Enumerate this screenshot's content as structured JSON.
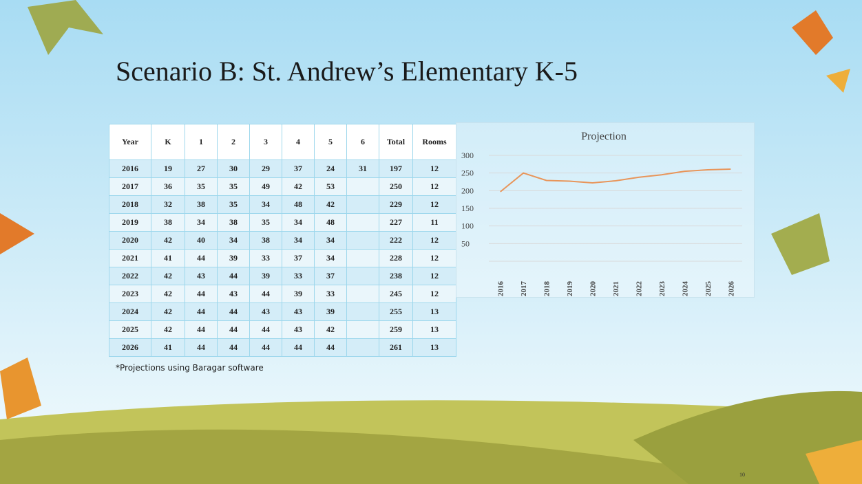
{
  "title": "Scenario B: St. Andrew’s Elementary K-5",
  "table": {
    "header": [
      "Year",
      "K",
      "1",
      "2",
      "3",
      "4",
      "5",
      "6",
      "Total",
      "Rooms"
    ],
    "rows": [
      [
        "2016",
        "19",
        "27",
        "30",
        "29",
        "37",
        "24",
        "31",
        "197",
        "12"
      ],
      [
        "2017",
        "36",
        "35",
        "35",
        "49",
        "42",
        "53",
        null,
        "250",
        "12"
      ],
      [
        "2018",
        "32",
        "38",
        "35",
        "34",
        "48",
        "42",
        null,
        "229",
        "12"
      ],
      [
        "2019",
        "38",
        "34",
        "38",
        "35",
        "34",
        "48",
        null,
        "227",
        "11"
      ],
      [
        "2020",
        "42",
        "40",
        "34",
        "38",
        "34",
        "34",
        null,
        "222",
        "12"
      ],
      [
        "2021",
        "41",
        "44",
        "39",
        "33",
        "37",
        "34",
        null,
        "228",
        "12"
      ],
      [
        "2022",
        "42",
        "43",
        "44",
        "39",
        "33",
        "37",
        null,
        "238",
        "12"
      ],
      [
        "2023",
        "42",
        "44",
        "43",
        "44",
        "39",
        "33",
        null,
        "245",
        "12"
      ],
      [
        "2024",
        "42",
        "44",
        "44",
        "43",
        "43",
        "39",
        null,
        "255",
        "13"
      ],
      [
        "2025",
        "42",
        "44",
        "44",
        "44",
        "43",
        "42",
        null,
        "259",
        "13"
      ],
      [
        "2026",
        "41",
        "44",
        "44",
        "44",
        "44",
        "44",
        null,
        "261",
        "13"
      ]
    ]
  },
  "footnote": "*Projections using Baragar software",
  "page_number": "10",
  "chart_data": {
    "type": "line",
    "title": "Projection",
    "categories": [
      "2016",
      "2017",
      "2018",
      "2019",
      "2020",
      "2021",
      "2022",
      "2023",
      "2024",
      "2025",
      "2026"
    ],
    "values": [
      197,
      250,
      229,
      227,
      222,
      228,
      238,
      245,
      255,
      259,
      261
    ],
    "color": "#e8955a",
    "ylim": [
      0,
      300
    ],
    "yticks": [
      50,
      100,
      150,
      200,
      250,
      300
    ],
    "grid": true
  }
}
